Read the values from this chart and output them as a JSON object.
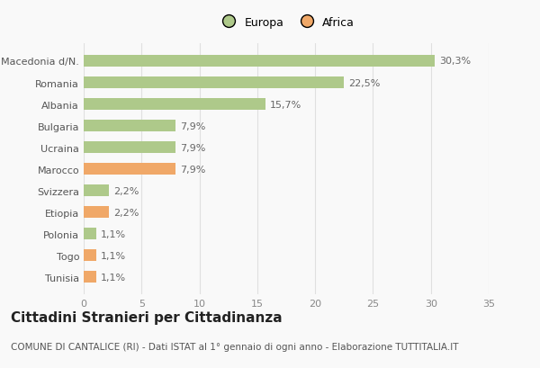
{
  "categories": [
    "Macedonia d/N.",
    "Romania",
    "Albania",
    "Bulgaria",
    "Ucraina",
    "Marocco",
    "Svizzera",
    "Etiopia",
    "Polonia",
    "Togo",
    "Tunisia"
  ],
  "values": [
    30.3,
    22.5,
    15.7,
    7.9,
    7.9,
    7.9,
    2.2,
    2.2,
    1.1,
    1.1,
    1.1
  ],
  "labels": [
    "30,3%",
    "22,5%",
    "15,7%",
    "7,9%",
    "7,9%",
    "7,9%",
    "2,2%",
    "2,2%",
    "1,1%",
    "1,1%",
    "1,1%"
  ],
  "colors": [
    "#aec98a",
    "#aec98a",
    "#aec98a",
    "#aec98a",
    "#aec98a",
    "#f0a868",
    "#aec98a",
    "#f0a868",
    "#aec98a",
    "#f0a868",
    "#f0a868"
  ],
  "legend": [
    {
      "label": "Europa",
      "color": "#aec98a"
    },
    {
      "label": "Africa",
      "color": "#f0a868"
    }
  ],
  "xlim": [
    0,
    35
  ],
  "xticks": [
    0,
    5,
    10,
    15,
    20,
    25,
    30,
    35
  ],
  "title": "Cittadini Stranieri per Cittadinanza",
  "subtitle": "COMUNE DI CANTALICE (RI) - Dati ISTAT al 1° gennaio di ogni anno - Elaborazione TUTTITALIA.IT",
  "background_color": "#f9f9f9",
  "grid_color": "#e0e0e0",
  "bar_height": 0.55,
  "title_fontsize": 11,
  "subtitle_fontsize": 7.5,
  "label_fontsize": 8,
  "tick_fontsize": 8,
  "legend_fontsize": 9
}
